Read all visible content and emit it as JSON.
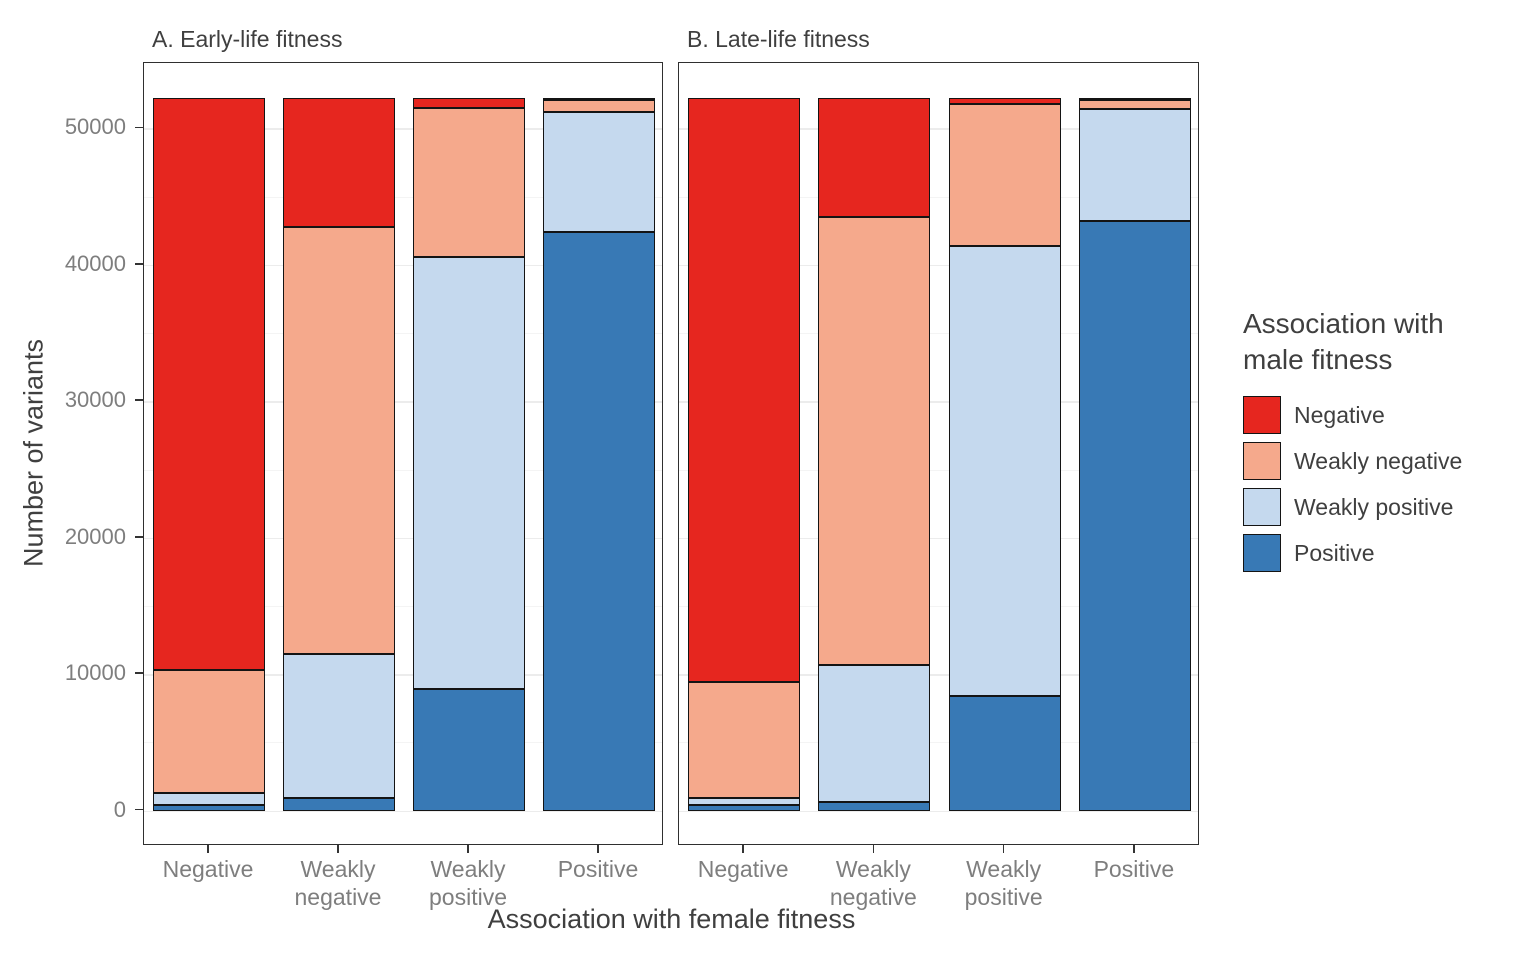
{
  "chart_data": {
    "type": "bar",
    "stacked": true,
    "panels": [
      {
        "title": "A. Early-life fitness",
        "series": [
          {
            "name": "Positive",
            "values": [
              400,
              900,
              8900,
              42400
            ]
          },
          {
            "name": "Weakly positive",
            "values": [
              900,
              10600,
              31700,
              8800
            ]
          },
          {
            "name": "Weakly negative",
            "values": [
              9000,
              31300,
              10900,
              900
            ]
          },
          {
            "name": "Negative",
            "values": [
              41900,
              9400,
              700,
              100
            ]
          }
        ]
      },
      {
        "title": "B. Late-life fitness",
        "series": [
          {
            "name": "Positive",
            "values": [
              400,
              600,
              8400,
              43200
            ]
          },
          {
            "name": "Weakly positive",
            "values": [
              500,
              10100,
              33000,
              8200
            ]
          },
          {
            "name": "Weakly negative",
            "values": [
              8500,
              32800,
              10400,
              700
            ]
          },
          {
            "name": "Negative",
            "values": [
              42800,
              8700,
              400,
              100
            ]
          }
        ]
      }
    ],
    "categories": [
      "Negative",
      "Weakly\nnegative",
      "Weakly\npositive",
      "Positive"
    ],
    "stack_order_bottom_to_top": [
      "Positive",
      "Weakly positive",
      "Weakly negative",
      "Negative"
    ],
    "colors": {
      "Negative": "#e6261f",
      "Weakly negative": "#f5a98c",
      "Weakly positive": "#c5d9ee",
      "Positive": "#3879b5"
    },
    "xlabel": "Association with female fitness",
    "ylabel": "Number of variants",
    "yticks": [
      0,
      10000,
      20000,
      30000,
      40000,
      50000
    ],
    "ylim": [
      0,
      52200
    ],
    "bar_total_per_category": 52200,
    "grid": true,
    "legend_position": "right",
    "legend_title": "Association with\nmale fitness",
    "legend_entries": [
      "Negative",
      "Weakly negative",
      "Weakly positive",
      "Positive"
    ]
  }
}
